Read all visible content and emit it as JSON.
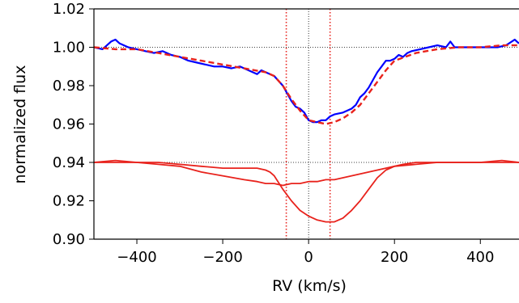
{
  "chart_data": {
    "type": "line",
    "title": "",
    "xlabel": "RV (km/s)",
    "ylabel": "normalized flux",
    "xlim": [
      -500,
      490
    ],
    "ylim": [
      0.9,
      1.02
    ],
    "x_ticks": [
      -400,
      -200,
      0,
      200,
      400
    ],
    "x_tick_labels": [
      "−400",
      "−200",
      "0",
      "200",
      "400"
    ],
    "y_ticks": [
      0.9,
      0.92,
      0.94,
      0.96,
      0.98,
      1.0,
      1.02
    ],
    "y_tick_labels": [
      "0.90",
      "0.92",
      "0.94",
      "0.96",
      "0.98",
      "1.00",
      "1.02"
    ],
    "reference_lines": {
      "horizontal_dotted": [
        1.0,
        0.94
      ],
      "vertical_dotted_black": [
        0
      ],
      "vertical_dotted_red": [
        -52,
        50
      ]
    },
    "colors": {
      "observed": "#0000ff",
      "fit": "#e8221c",
      "components": "#e8221c",
      "guide": "#000000"
    },
    "series": [
      {
        "key": "observed",
        "style": "solid-blue",
        "x": [
          -500,
          -480,
          -460,
          -450,
          -440,
          -430,
          -420,
          -400,
          -380,
          -360,
          -340,
          -320,
          -300,
          -280,
          -260,
          -240,
          -220,
          -200,
          -180,
          -160,
          -140,
          -120,
          -110,
          -100,
          -80,
          -60,
          -50,
          -40,
          -30,
          -20,
          -10,
          0,
          10,
          20,
          30,
          40,
          50,
          60,
          80,
          100,
          110,
          120,
          130,
          140,
          150,
          160,
          170,
          180,
          190,
          200,
          210,
          220,
          230,
          240,
          260,
          280,
          300,
          320,
          330,
          340,
          360,
          380,
          400,
          420,
          440,
          460,
          480,
          490
        ],
        "y": [
          1.0,
          0.999,
          1.003,
          1.004,
          1.002,
          1.001,
          1.0,
          0.999,
          0.998,
          0.997,
          0.998,
          0.996,
          0.995,
          0.993,
          0.992,
          0.991,
          0.99,
          0.99,
          0.989,
          0.99,
          0.988,
          0.986,
          0.988,
          0.987,
          0.985,
          0.98,
          0.976,
          0.972,
          0.969,
          0.968,
          0.966,
          0.962,
          0.961,
          0.961,
          0.962,
          0.962,
          0.964,
          0.965,
          0.966,
          0.968,
          0.97,
          0.974,
          0.976,
          0.979,
          0.983,
          0.987,
          0.99,
          0.993,
          0.993,
          0.994,
          0.996,
          0.995,
          0.997,
          0.998,
          0.999,
          1.0,
          1.001,
          1.0,
          1.003,
          1.0,
          1.0,
          1.0,
          1.0,
          1.0,
          1.0,
          1.001,
          1.004,
          1.002
        ]
      },
      {
        "key": "fit",
        "style": "dashed-red",
        "x": [
          -500,
          -450,
          -400,
          -350,
          -300,
          -250,
          -200,
          -150,
          -100,
          -80,
          -60,
          -40,
          -20,
          0,
          20,
          40,
          60,
          80,
          100,
          120,
          140,
          160,
          180,
          200,
          250,
          300,
          350,
          400,
          450,
          490
        ],
        "y": [
          1.0,
          0.999,
          0.999,
          0.997,
          0.995,
          0.993,
          0.991,
          0.989,
          0.987,
          0.985,
          0.98,
          0.973,
          0.967,
          0.962,
          0.961,
          0.96,
          0.961,
          0.963,
          0.966,
          0.97,
          0.976,
          0.982,
          0.988,
          0.993,
          0.997,
          0.999,
          1.0,
          1.0,
          1.001,
          1.001
        ]
      },
      {
        "key": "component-narrow",
        "style": "solid-red",
        "x": [
          -500,
          -450,
          -400,
          -350,
          -300,
          -250,
          -200,
          -150,
          -120,
          -100,
          -80,
          -60,
          -40,
          -20,
          0,
          20,
          40,
          60,
          80,
          100,
          120,
          140,
          160,
          180,
          200,
          250,
          300,
          350,
          400,
          450,
          490
        ],
        "y": [
          0.94,
          0.941,
          0.94,
          0.939,
          0.938,
          0.935,
          0.933,
          0.931,
          0.93,
          0.929,
          0.929,
          0.928,
          0.929,
          0.929,
          0.93,
          0.93,
          0.931,
          0.931,
          0.932,
          0.933,
          0.934,
          0.935,
          0.936,
          0.937,
          0.938,
          0.939,
          0.94,
          0.94,
          0.94,
          0.941,
          0.94
        ]
      },
      {
        "key": "component-broad",
        "style": "solid-red",
        "x": [
          -500,
          -450,
          -400,
          -350,
          -300,
          -250,
          -200,
          -150,
          -120,
          -100,
          -90,
          -80,
          -60,
          -40,
          -20,
          0,
          20,
          40,
          60,
          80,
          100,
          120,
          140,
          160,
          180,
          200,
          220,
          250,
          300,
          350,
          400,
          450,
          490
        ],
        "y": [
          0.94,
          0.94,
          0.94,
          0.94,
          0.939,
          0.938,
          0.937,
          0.937,
          0.937,
          0.936,
          0.935,
          0.933,
          0.926,
          0.92,
          0.915,
          0.912,
          0.91,
          0.909,
          0.909,
          0.911,
          0.915,
          0.92,
          0.926,
          0.932,
          0.936,
          0.938,
          0.939,
          0.94,
          0.94,
          0.94,
          0.94,
          0.94,
          0.94
        ]
      }
    ]
  }
}
